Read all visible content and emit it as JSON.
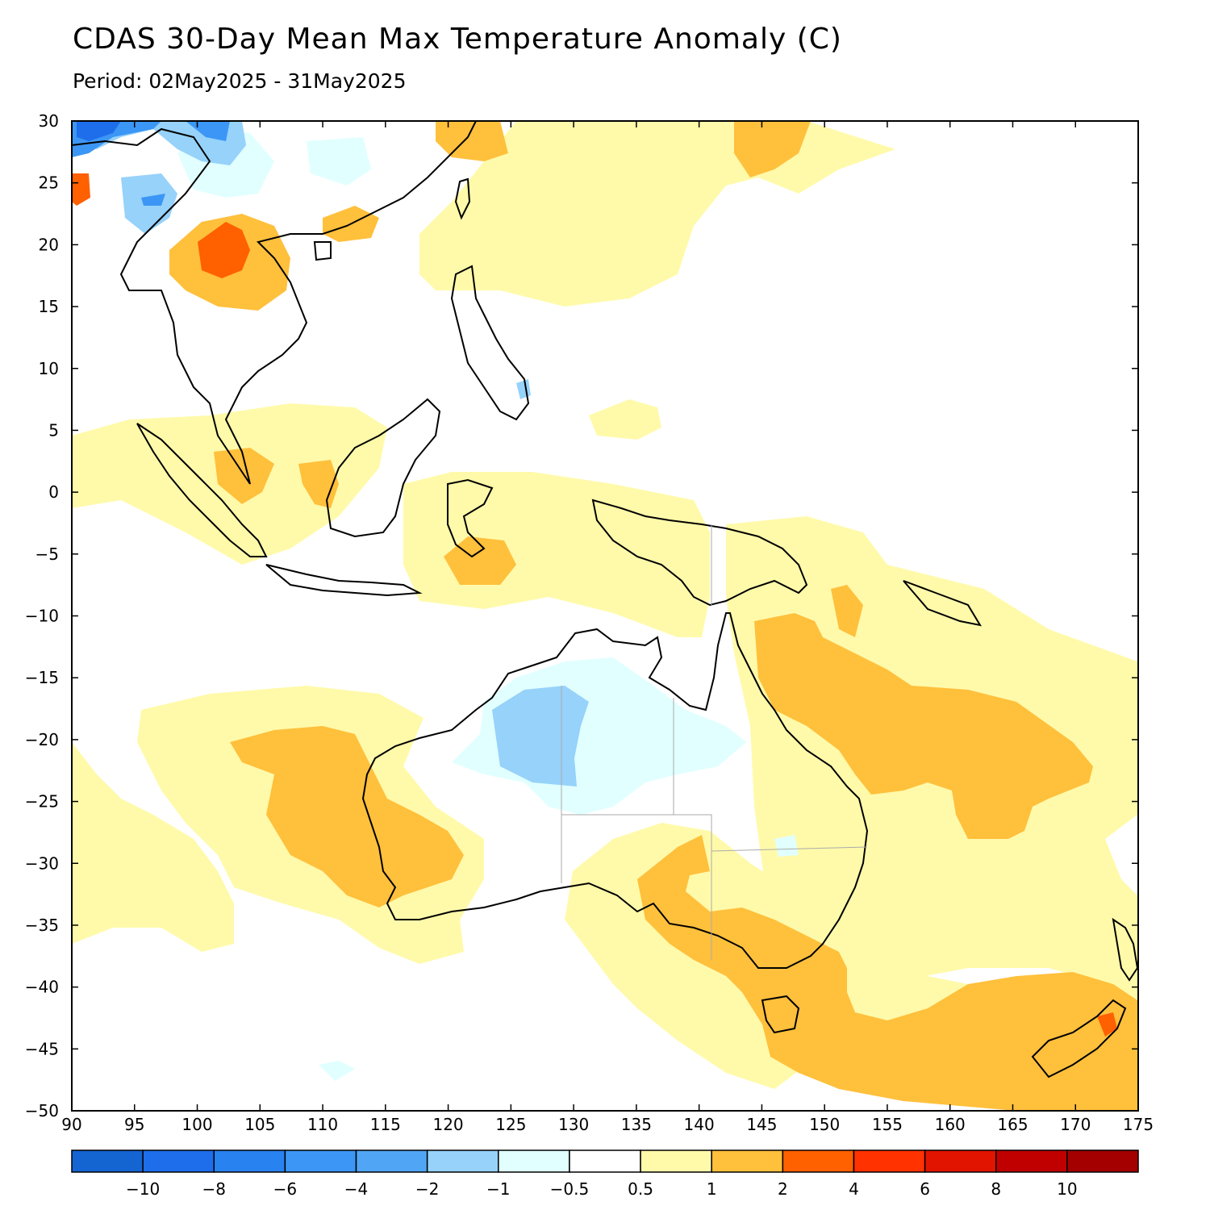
{
  "title": "CDAS 30-Day Mean Max Temperature Anomaly (C)",
  "subtitle": "Period: 02May2025 - 31May2025",
  "map": {
    "lon_range": [
      90,
      175
    ],
    "lat_range": [
      -50,
      30
    ],
    "lon_ticks": [
      "90",
      "95",
      "100",
      "105",
      "110",
      "115",
      "120",
      "125",
      "130",
      "135",
      "140",
      "145",
      "150",
      "155",
      "160",
      "165",
      "170",
      "175"
    ],
    "lat_ticks": [
      "30",
      "25",
      "20",
      "15",
      "10",
      "5",
      "0",
      "−5",
      "−10",
      "−15",
      "−20",
      "−25",
      "−30",
      "−35",
      "−40",
      "−45",
      "−50"
    ]
  },
  "colorbar": {
    "colors": [
      "#1464d2",
      "#1e6eeb",
      "#2882f0",
      "#3c96f5",
      "#50a5f5",
      "#96d2fa",
      "#e1ffff",
      "#ffffff",
      "#fffaaa",
      "#ffc03c",
      "#ff6000",
      "#ff3200",
      "#e11400",
      "#c00000",
      "#a50000"
    ],
    "labels": [
      "−10",
      "−8",
      "−6",
      "−4",
      "−2",
      "−1",
      "−0.5",
      "0.5",
      "1",
      "2",
      "4",
      "6",
      "8",
      "10"
    ]
  }
}
